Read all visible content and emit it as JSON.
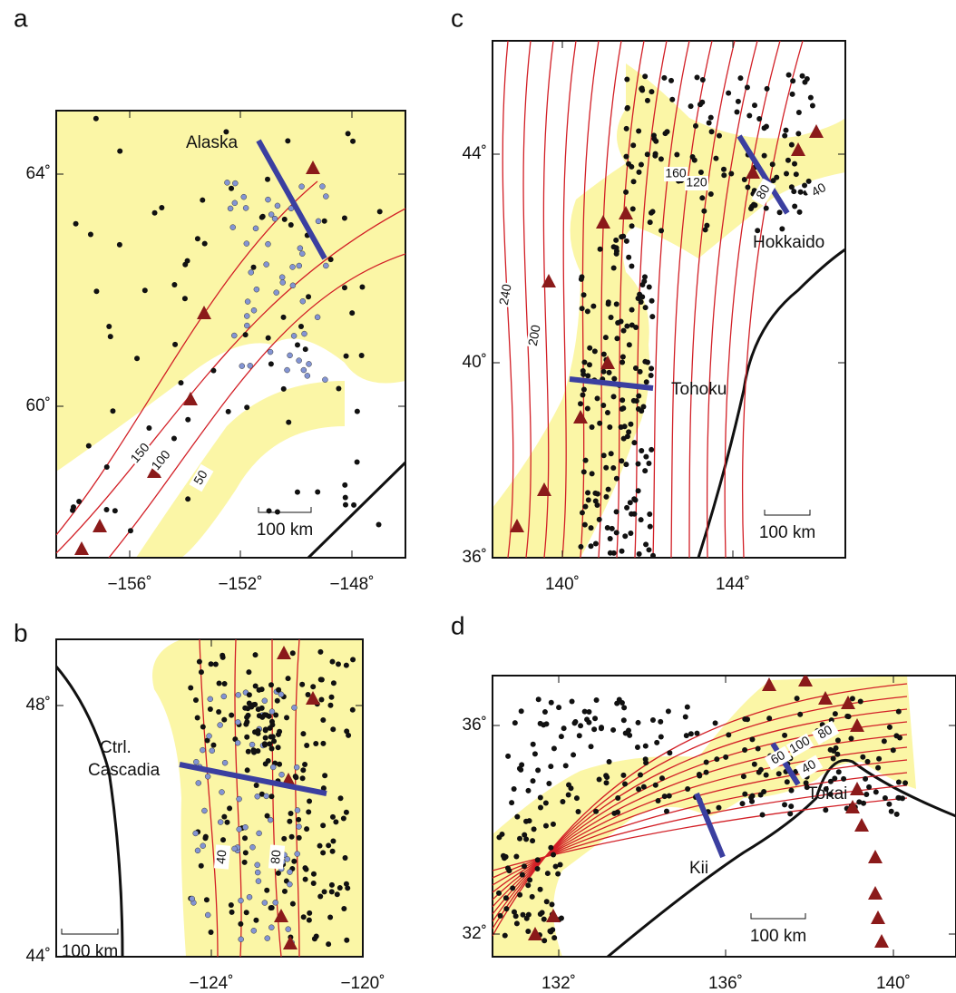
{
  "panels": [
    {
      "label": "a",
      "y_ticks": [
        "64˚",
        "60˚"
      ],
      "x_ticks": [
        "−156˚",
        "−152˚",
        "−148˚"
      ],
      "places": [
        "Alaska"
      ],
      "contours": [
        "150",
        "100",
        "50"
      ],
      "scale": "100 km"
    },
    {
      "label": "b",
      "y_ticks": [
        "48˚",
        "44˚"
      ],
      "x_ticks": [
        "−124˚",
        "−120˚"
      ],
      "places": [
        "Ctrl.",
        "Cascadia"
      ],
      "contours": [
        "40",
        "80"
      ],
      "scale": "100 km"
    },
    {
      "label": "c",
      "y_ticks": [
        "44˚",
        "40˚",
        "36˚"
      ],
      "x_ticks": [
        "140˚",
        "144˚"
      ],
      "places": [
        "Hokkaido",
        "Tohoku"
      ],
      "contours": [
        "160",
        "120",
        "80",
        "40",
        "240",
        "200"
      ],
      "scale": "100 km"
    },
    {
      "label": "d",
      "y_ticks": [
        "36˚",
        "32˚"
      ],
      "x_ticks": [
        "132˚",
        "136˚",
        "140˚"
      ],
      "places": [
        "Tokai",
        "Kii"
      ],
      "contours": [
        "60",
        "100",
        "80",
        "40"
      ],
      "scale": "100 km"
    }
  ]
}
